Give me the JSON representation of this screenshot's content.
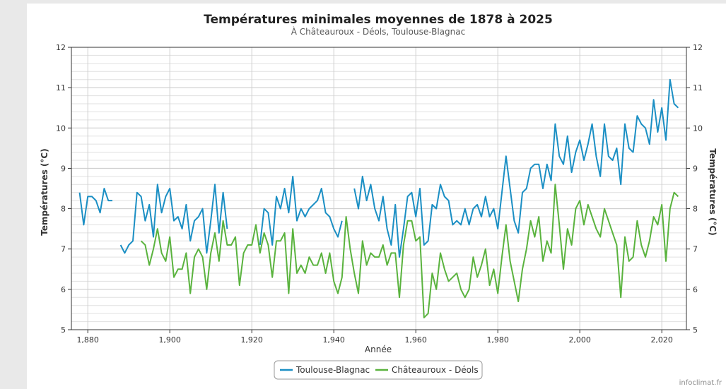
{
  "credit": "infoclimat.fr",
  "menu_icon": "hamburger-menu-icon",
  "chart_data": {
    "type": "line",
    "title": "Températures minimales moyennes de 1878 à 2025",
    "subtitle": "À Châteauroux - Déols, Toulouse-Blagnac",
    "xlabel": "Année",
    "ylabel_left": "Températures (°C)",
    "ylabel_right": "Températures (°C)",
    "xlim": [
      1876,
      2026
    ],
    "ylim": [
      5,
      12
    ],
    "x_ticks": [
      1880,
      1900,
      1920,
      1940,
      1960,
      1980,
      2000,
      2020
    ],
    "x_tick_labels": [
      "1,880",
      "1,900",
      "1,920",
      "1,940",
      "1,960",
      "1,980",
      "2,000",
      "2,020"
    ],
    "y_ticks": [
      5,
      6,
      7,
      8,
      9,
      10,
      11,
      12
    ],
    "grid": true,
    "legend_position": "bottom-center",
    "series": [
      {
        "name": "Toulouse-Blagnac",
        "color": "#1b8fc4",
        "x": [
          1878,
          1879,
          1880,
          1881,
          1882,
          1883,
          1884,
          1885,
          1886,
          null,
          1888,
          1889,
          1890,
          1891,
          1892,
          1893,
          1894,
          1895,
          1896,
          1897,
          1898,
          1899,
          1900,
          1901,
          1902,
          1903,
          1904,
          1905,
          1906,
          1907,
          1908,
          1909,
          1910,
          1911,
          1912,
          1913,
          1914,
          null,
          1922,
          1923,
          1924,
          1925,
          1926,
          1927,
          1928,
          1929,
          1930,
          1931,
          1932,
          1933,
          1934,
          1935,
          1936,
          1937,
          1938,
          1939,
          1940,
          1941,
          1942,
          null,
          1945,
          1946,
          1947,
          1948,
          1949,
          1950,
          1951,
          1952,
          1953,
          1954,
          1955,
          1956,
          1957,
          1958,
          1959,
          1960,
          1961,
          1962,
          1963,
          1964,
          1965,
          1966,
          1967,
          1968,
          1969,
          1970,
          1971,
          1972,
          1973,
          1974,
          1975,
          1976,
          1977,
          1978,
          1979,
          1980,
          1981,
          1982,
          1983,
          1984,
          1985,
          1986,
          1987,
          1988,
          1989,
          1990,
          1991,
          1992,
          1993,
          1994,
          1995,
          1996,
          1997,
          1998,
          1999,
          2000,
          2001,
          2002,
          2003,
          2004,
          2005,
          2006,
          2007,
          2008,
          2009,
          2010,
          2011,
          2012,
          2013,
          2014,
          2015,
          2016,
          2017,
          2018,
          2019,
          2020,
          2021,
          2022,
          2023,
          2024
        ],
        "values": [
          8.4,
          7.6,
          8.3,
          8.3,
          8.2,
          7.9,
          8.5,
          8.2,
          8.2,
          null,
          7.1,
          6.9,
          7.1,
          7.2,
          8.4,
          8.3,
          7.7,
          8.1,
          7.3,
          8.6,
          7.9,
          8.3,
          8.5,
          7.7,
          7.8,
          7.5,
          8.1,
          7.2,
          7.7,
          7.8,
          8.0,
          6.9,
          7.7,
          8.6,
          7.4,
          8.4,
          7.5,
          null,
          7.1,
          8.0,
          7.9,
          7.1,
          8.3,
          8.0,
          8.5,
          7.9,
          8.8,
          7.7,
          8.0,
          7.8,
          8.0,
          8.1,
          8.2,
          8.5,
          7.9,
          7.8,
          7.5,
          7.3,
          7.7,
          null,
          8.5,
          8.0,
          8.8,
          8.2,
          8.6,
          8.0,
          7.7,
          8.3,
          7.5,
          7.1,
          8.1,
          6.8,
          7.5,
          8.3,
          8.4,
          7.8,
          8.5,
          7.1,
          7.2,
          8.1,
          8.0,
          8.6,
          8.3,
          8.2,
          7.6,
          7.7,
          7.6,
          8.0,
          7.6,
          8.0,
          8.1,
          7.8,
          8.3,
          7.8,
          8.0,
          7.5,
          8.4,
          9.3,
          8.5,
          7.7,
          7.4,
          8.4,
          8.5,
          9.0,
          9.1,
          9.1,
          8.5,
          9.1,
          8.7,
          10.1,
          9.3,
          9.1,
          9.8,
          8.9,
          9.4,
          9.7,
          9.2,
          9.6,
          10.1,
          9.3,
          8.8,
          10.1,
          9.3,
          9.2,
          9.5,
          8.6,
          10.1,
          9.5,
          9.4,
          10.3,
          10.1,
          10.0,
          9.6,
          10.7,
          9.9,
          10.5,
          9.7,
          11.2,
          10.6,
          10.5
        ]
      },
      {
        "name": "Châteauroux - Déols",
        "color": "#5ab33e",
        "x": [
          1893,
          1894,
          1895,
          1896,
          1897,
          1898,
          1899,
          1900,
          1901,
          1902,
          1903,
          1904,
          1905,
          1906,
          1907,
          1908,
          1909,
          1910,
          1911,
          1912,
          1913,
          1914,
          1915,
          1916,
          1917,
          1918,
          1919,
          1920,
          1921,
          1922,
          1923,
          1924,
          1925,
          1926,
          1927,
          1928,
          1929,
          1930,
          1931,
          1932,
          1933,
          1934,
          1935,
          1936,
          1937,
          1938,
          1939,
          1940,
          1941,
          1942,
          1943,
          1944,
          1945,
          1946,
          1947,
          1948,
          1949,
          1950,
          1951,
          1952,
          1953,
          1954,
          1955,
          1956,
          1957,
          1958,
          1959,
          1960,
          1961,
          1962,
          1963,
          1964,
          1965,
          1966,
          1967,
          1968,
          1969,
          1970,
          1971,
          1972,
          1973,
          1974,
          1975,
          1976,
          1977,
          1978,
          1979,
          1980,
          1981,
          1982,
          1983,
          1984,
          1985,
          1986,
          1987,
          1988,
          1989,
          1990,
          1991,
          1992,
          1993,
          1994,
          1995,
          1996,
          1997,
          1998,
          1999,
          2000,
          2001,
          2002,
          2003,
          2004,
          2005,
          2006,
          2007,
          2008,
          2009,
          2010,
          2011,
          2012,
          2013,
          2014,
          2015,
          2016,
          2017,
          2018,
          2019,
          2020,
          2021,
          2022,
          2023,
          2024
        ],
        "values": [
          7.2,
          7.1,
          6.6,
          7.0,
          7.5,
          6.9,
          6.7,
          7.3,
          6.3,
          6.5,
          6.5,
          6.9,
          5.9,
          6.8,
          7.0,
          6.8,
          6.0,
          6.9,
          7.4,
          6.7,
          7.7,
          7.1,
          7.1,
          7.3,
          6.1,
          6.9,
          7.1,
          7.1,
          7.6,
          6.9,
          7.4,
          7.1,
          6.3,
          7.2,
          7.2,
          7.4,
          5.9,
          7.5,
          6.4,
          6.6,
          6.4,
          6.8,
          6.6,
          6.6,
          6.9,
          6.4,
          6.9,
          6.2,
          5.9,
          6.3,
          7.8,
          7.0,
          6.4,
          5.9,
          7.2,
          6.6,
          6.9,
          6.8,
          6.8,
          7.1,
          6.6,
          6.9,
          6.9,
          5.8,
          7.1,
          7.7,
          7.7,
          7.2,
          7.3,
          5.3,
          5.4,
          6.4,
          6.0,
          6.9,
          6.5,
          6.2,
          6.3,
          6.4,
          6.0,
          5.8,
          6.0,
          6.8,
          6.3,
          6.6,
          7.0,
          6.1,
          6.5,
          5.9,
          6.8,
          7.6,
          6.7,
          6.2,
          5.7,
          6.5,
          7.0,
          7.7,
          7.3,
          7.8,
          6.7,
          7.2,
          6.9,
          8.6,
          7.6,
          6.5,
          7.5,
          7.1,
          8.0,
          8.2,
          7.6,
          8.1,
          7.8,
          7.5,
          7.3,
          8.0,
          7.7,
          7.4,
          7.1,
          5.8,
          7.3,
          6.7,
          6.8,
          7.7,
          7.1,
          6.8,
          7.2,
          7.8,
          7.6,
          8.1,
          6.7,
          8.0,
          8.4,
          8.3
        ]
      }
    ]
  }
}
